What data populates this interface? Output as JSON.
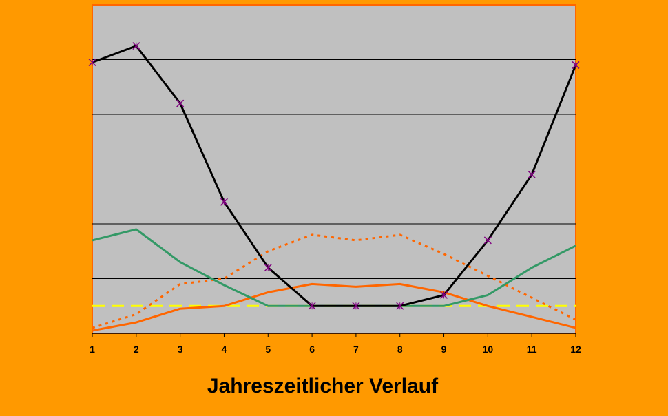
{
  "chart_data": {
    "type": "line",
    "title": "Jahreszeitlicher Verlauf",
    "xlabel": "",
    "ylabel": "",
    "x": [
      1,
      2,
      3,
      4,
      5,
      6,
      7,
      8,
      9,
      10,
      11,
      12
    ],
    "x_tick_labels": [
      "1",
      "2",
      "3",
      "4",
      "5",
      "6",
      "7",
      "8",
      "9",
      "10",
      "11",
      "12"
    ],
    "ylim": [
      0,
      6
    ],
    "gridlines_y": [
      1,
      2,
      3,
      4,
      5
    ],
    "grid": true,
    "y_tick_labels_shown": false,
    "legend": "none",
    "background_color": "#FF9900",
    "plot_background_color": "#C0C0C0",
    "plot_border_color": "#FF6600",
    "series": [
      {
        "color": "#000000",
        "style": "solid",
        "marker": "x",
        "marker_color": "#800080",
        "values": [
          4.95,
          5.25,
          4.2,
          2.4,
          1.2,
          0.5,
          0.5,
          0.5,
          0.7,
          1.7,
          2.9,
          4.9
        ]
      },
      {
        "color": "#339966",
        "style": "solid",
        "values": [
          1.7,
          1.9,
          1.3,
          0.88,
          0.5,
          0.5,
          0.5,
          0.5,
          0.5,
          0.7,
          1.2,
          1.6
        ]
      },
      {
        "color": "#FF6600",
        "style": "dotted",
        "values": [
          0.1,
          0.35,
          0.9,
          1.0,
          1.5,
          1.8,
          1.7,
          1.8,
          1.45,
          1.05,
          0.65,
          0.25
        ]
      },
      {
        "color": "#FF6600",
        "style": "solid",
        "values": [
          0.05,
          0.2,
          0.45,
          0.5,
          0.75,
          0.9,
          0.85,
          0.9,
          0.75,
          0.5,
          0.3,
          0.1
        ]
      },
      {
        "color": "#FFFF00",
        "style": "dashed",
        "values": [
          0.5,
          0.5,
          0.5,
          0.5,
          0.5,
          0.5,
          0.5,
          0.5,
          0.5,
          0.5,
          0.5,
          0.5
        ]
      }
    ]
  }
}
